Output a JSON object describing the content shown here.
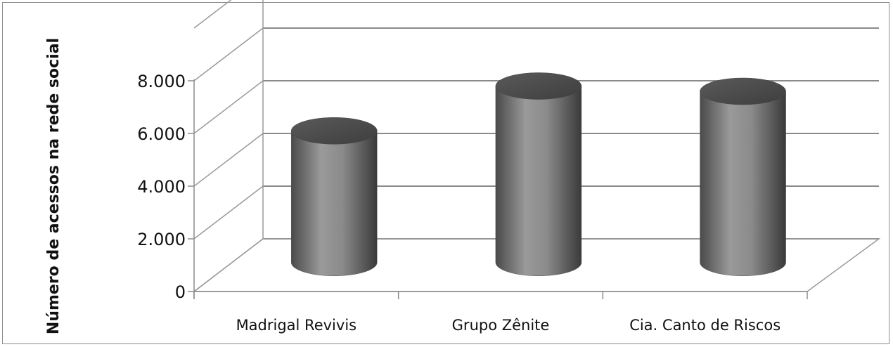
{
  "chart_data": {
    "type": "bar",
    "style": "3d-cylinder",
    "categories": [
      "Madrigal Revivis",
      "Grupo Zênite",
      "Cia. Canto de Riscos"
    ],
    "values": [
      5000,
      6700,
      6500
    ],
    "ylabel": "Número de acessos na rede social",
    "xlabel": "",
    "ylim": [
      0,
      8000
    ],
    "yticks": [
      0,
      2000,
      4000,
      6000,
      8000
    ],
    "ytick_labels": [
      "0",
      "2.000",
      "4.000",
      "6.000",
      "8.000"
    ],
    "grid": true,
    "legend": "none",
    "bar_color": "#6d6d6d"
  }
}
